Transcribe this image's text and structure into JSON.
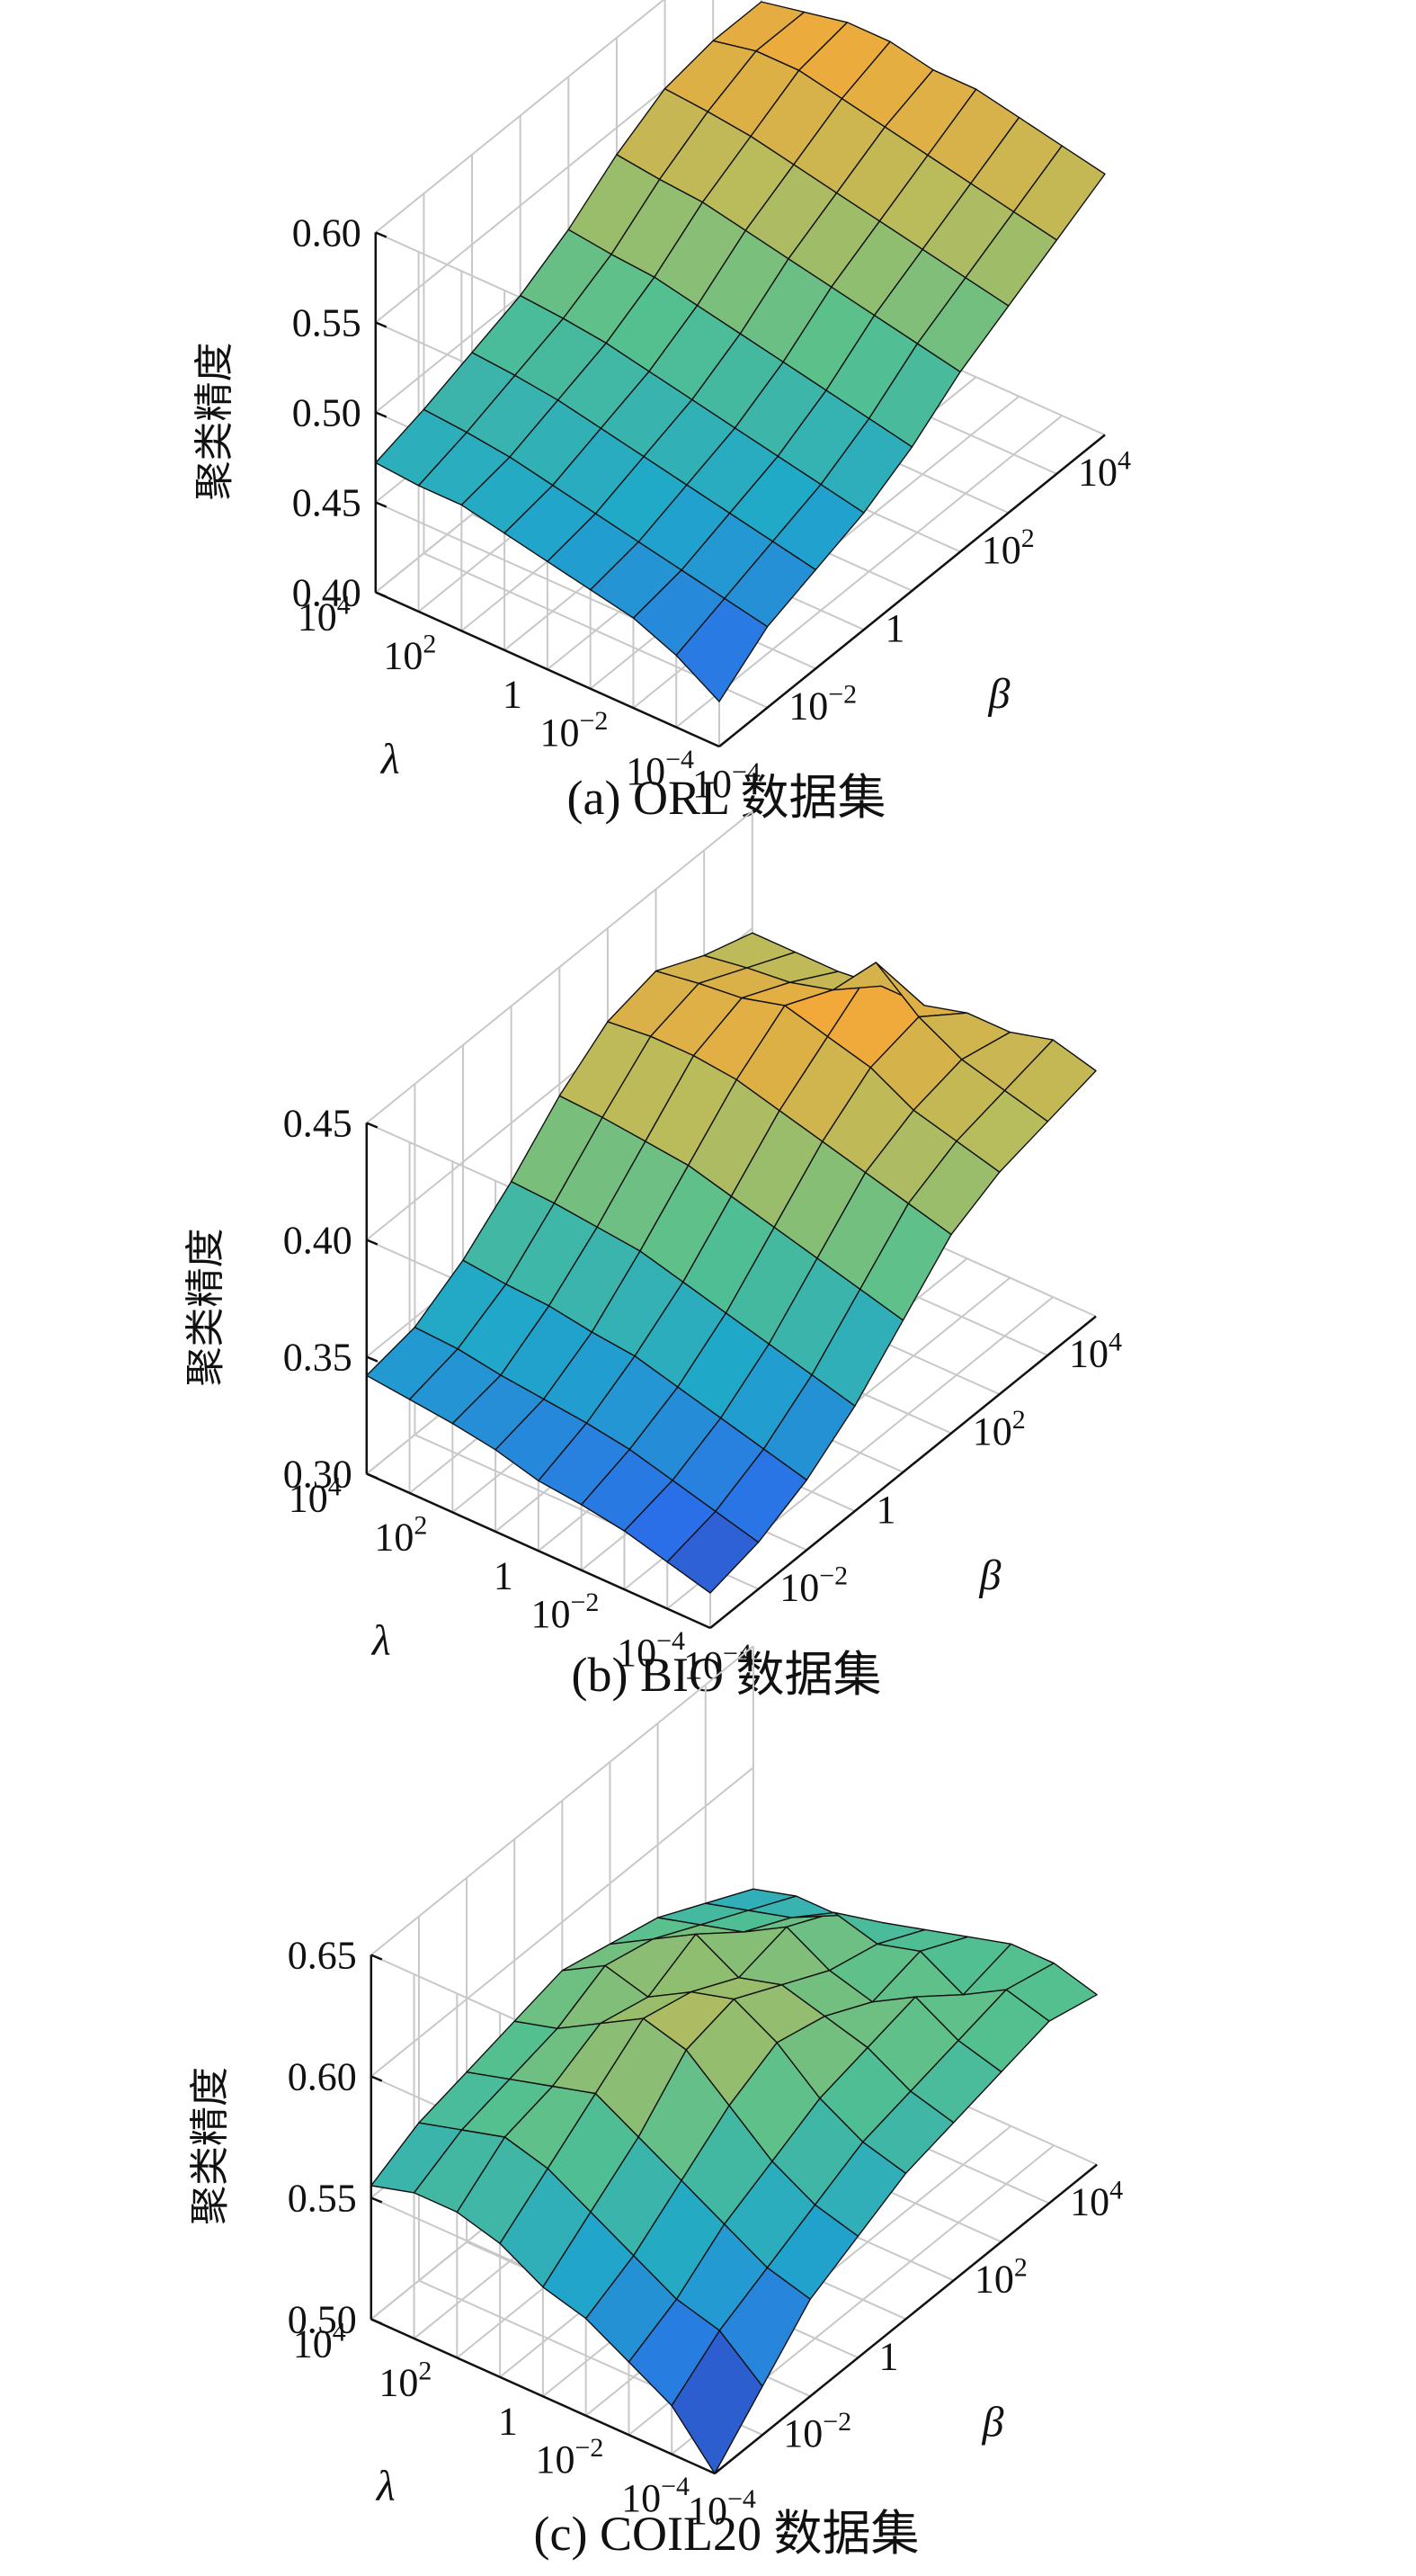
{
  "chart_data": [
    {
      "type": "surface",
      "caption": "(a) ORL 数据集",
      "zlabel": "聚类精度",
      "xlabel": "λ",
      "ylabel": "β",
      "zlim": [
        0.4,
        0.6
      ],
      "z_ticks": [
        "0.40",
        "0.45",
        "0.50",
        "0.55",
        "0.60"
      ],
      "lambda_ticks": [
        {
          "exp": "-4"
        },
        {
          "exp": "-2"
        },
        {
          "exp": ""
        },
        {
          "exp": "2"
        },
        {
          "exp": "4"
        }
      ],
      "beta_ticks": [
        {
          "exp": "-4"
        },
        {
          "exp": "-2"
        },
        {
          "exp": ""
        },
        {
          "exp": "2"
        },
        {
          "exp": "4"
        }
      ],
      "grid": true,
      "colormap": [
        "#352a87",
        "#2b6fe8",
        "#20a8c9",
        "#55c08f",
        "#b7bc5d",
        "#f6a837",
        "#f9fb0e"
      ],
      "lambda_log10": [
        -4,
        -3,
        -2,
        -1,
        0,
        1,
        2,
        3,
        4
      ],
      "beta_log10": [
        -4,
        -3,
        -2,
        -1,
        0,
        1,
        2,
        3,
        4
      ],
      "values": [
        [
          0.425,
          0.445,
          0.455,
          0.465,
          0.48,
          0.5,
          0.515,
          0.53,
          0.545
        ],
        [
          0.44,
          0.45,
          0.46,
          0.47,
          0.485,
          0.505,
          0.52,
          0.535,
          0.55
        ],
        [
          0.45,
          0.455,
          0.465,
          0.475,
          0.49,
          0.51,
          0.525,
          0.54,
          0.555
        ],
        [
          0.455,
          0.46,
          0.47,
          0.48,
          0.495,
          0.515,
          0.53,
          0.545,
          0.56
        ],
        [
          0.46,
          0.465,
          0.475,
          0.485,
          0.5,
          0.52,
          0.535,
          0.55,
          0.56
        ],
        [
          0.465,
          0.47,
          0.48,
          0.49,
          0.505,
          0.525,
          0.54,
          0.555,
          0.565
        ],
        [
          0.47,
          0.475,
          0.485,
          0.495,
          0.51,
          0.53,
          0.545,
          0.56,
          0.565
        ],
        [
          0.47,
          0.478,
          0.488,
          0.498,
          0.512,
          0.532,
          0.548,
          0.56,
          0.56
        ],
        [
          0.472,
          0.48,
          0.49,
          0.5,
          0.515,
          0.535,
          0.55,
          0.555,
          0.555
        ]
      ]
    },
    {
      "type": "surface",
      "caption": "(b) BIO 数据集",
      "zlabel": "聚类精度",
      "xlabel": "λ",
      "ylabel": "β",
      "zlim": [
        0.3,
        0.45
      ],
      "z_ticks": [
        "0.30",
        "0.35",
        "0.40",
        "0.45"
      ],
      "lambda_ticks": [
        {
          "exp": "-4"
        },
        {
          "exp": "-2"
        },
        {
          "exp": ""
        },
        {
          "exp": "2"
        },
        {
          "exp": "4"
        }
      ],
      "beta_ticks": [
        {
          "exp": "-4"
        },
        {
          "exp": "-2"
        },
        {
          "exp": ""
        },
        {
          "exp": "2"
        },
        {
          "exp": "4"
        }
      ],
      "grid": true,
      "colormap": [
        "#352a87",
        "#2b6fe8",
        "#20a8c9",
        "#55c08f",
        "#b7bc5d",
        "#f6a837",
        "#f9fb0e"
      ],
      "lambda_log10": [
        -4,
        -3,
        -2,
        -1,
        0,
        1,
        2,
        3,
        4
      ],
      "beta_log10": [
        -4,
        -3,
        -2,
        -1,
        0,
        1,
        2,
        3,
        4
      ],
      "values": [
        [
          0.315,
          0.32,
          0.33,
          0.345,
          0.365,
          0.385,
          0.395,
          0.4,
          0.405
        ],
        [
          0.32,
          0.325,
          0.335,
          0.35,
          0.37,
          0.39,
          0.4,
          0.405,
          0.41
        ],
        [
          0.325,
          0.33,
          0.34,
          0.355,
          0.375,
          0.395,
          0.405,
          0.41,
          0.405
        ],
        [
          0.328,
          0.335,
          0.345,
          0.36,
          0.38,
          0.4,
          0.415,
          0.42,
          0.405
        ],
        [
          0.33,
          0.338,
          0.35,
          0.365,
          0.385,
          0.405,
          0.42,
          0.435,
          0.4
        ],
        [
          0.335,
          0.34,
          0.352,
          0.37,
          0.39,
          0.41,
          0.425,
          0.415,
          0.4
        ],
        [
          0.338,
          0.342,
          0.355,
          0.372,
          0.392,
          0.412,
          0.42,
          0.41,
          0.398
        ],
        [
          0.34,
          0.345,
          0.356,
          0.374,
          0.394,
          0.412,
          0.418,
          0.408,
          0.398
        ],
        [
          0.342,
          0.346,
          0.358,
          0.375,
          0.395,
          0.41,
          0.415,
          0.405,
          0.398
        ]
      ]
    },
    {
      "type": "surface",
      "caption": "(c) COIL20 数据集",
      "zlabel": "聚类精度",
      "xlabel": "λ",
      "ylabel": "β",
      "zlim": [
        0.5,
        0.65
      ],
      "z_ticks": [
        "0.50",
        "0.55",
        "0.60",
        "0.65"
      ],
      "lambda_ticks": [
        {
          "exp": "-4"
        },
        {
          "exp": "-2"
        },
        {
          "exp": ""
        },
        {
          "exp": "2"
        },
        {
          "exp": "4"
        }
      ],
      "beta_ticks": [
        {
          "exp": "-4"
        },
        {
          "exp": "-2"
        },
        {
          "exp": ""
        },
        {
          "exp": "2"
        },
        {
          "exp": "4"
        }
      ],
      "grid": true,
      "colormap": [
        "#352a87",
        "#2b6fe8",
        "#20a8c9",
        "#55c08f",
        "#b7bc5d",
        "#f6a837",
        "#f9fb0e"
      ],
      "lambda_log10": [
        -4,
        -3,
        -2,
        -1,
        0,
        1,
        2,
        3,
        4
      ],
      "beta_log10": [
        -4,
        -3,
        -2,
        -1,
        0,
        1,
        2,
        3,
        4
      ],
      "values": [
        [
          0.5,
          0.52,
          0.54,
          0.55,
          0.56,
          0.565,
          0.57,
          0.575,
          0.57
        ],
        [
          0.52,
          0.535,
          0.545,
          0.555,
          0.565,
          0.57,
          0.575,
          0.58,
          0.575
        ],
        [
          0.53,
          0.54,
          0.555,
          0.565,
          0.575,
          0.58,
          0.585,
          0.57,
          0.575
        ],
        [
          0.54,
          0.55,
          0.565,
          0.58,
          0.59,
          0.585,
          0.575,
          0.58,
          0.57
        ],
        [
          0.545,
          0.56,
          0.575,
          0.595,
          0.6,
          0.59,
          0.58,
          0.575,
          0.565
        ],
        [
          0.555,
          0.57,
          0.585,
          0.6,
          0.595,
          0.585,
          0.59,
          0.58,
          0.56
        ],
        [
          0.56,
          0.575,
          0.58,
          0.59,
          0.585,
          0.595,
          0.58,
          0.57,
          0.555
        ],
        [
          0.56,
          0.57,
          0.575,
          0.58,
          0.59,
          0.585,
          0.575,
          0.565,
          0.555
        ],
        [
          0.555,
          0.565,
          0.57,
          0.575,
          0.58,
          0.575,
          0.57,
          0.56,
          0.55
        ]
      ]
    }
  ]
}
